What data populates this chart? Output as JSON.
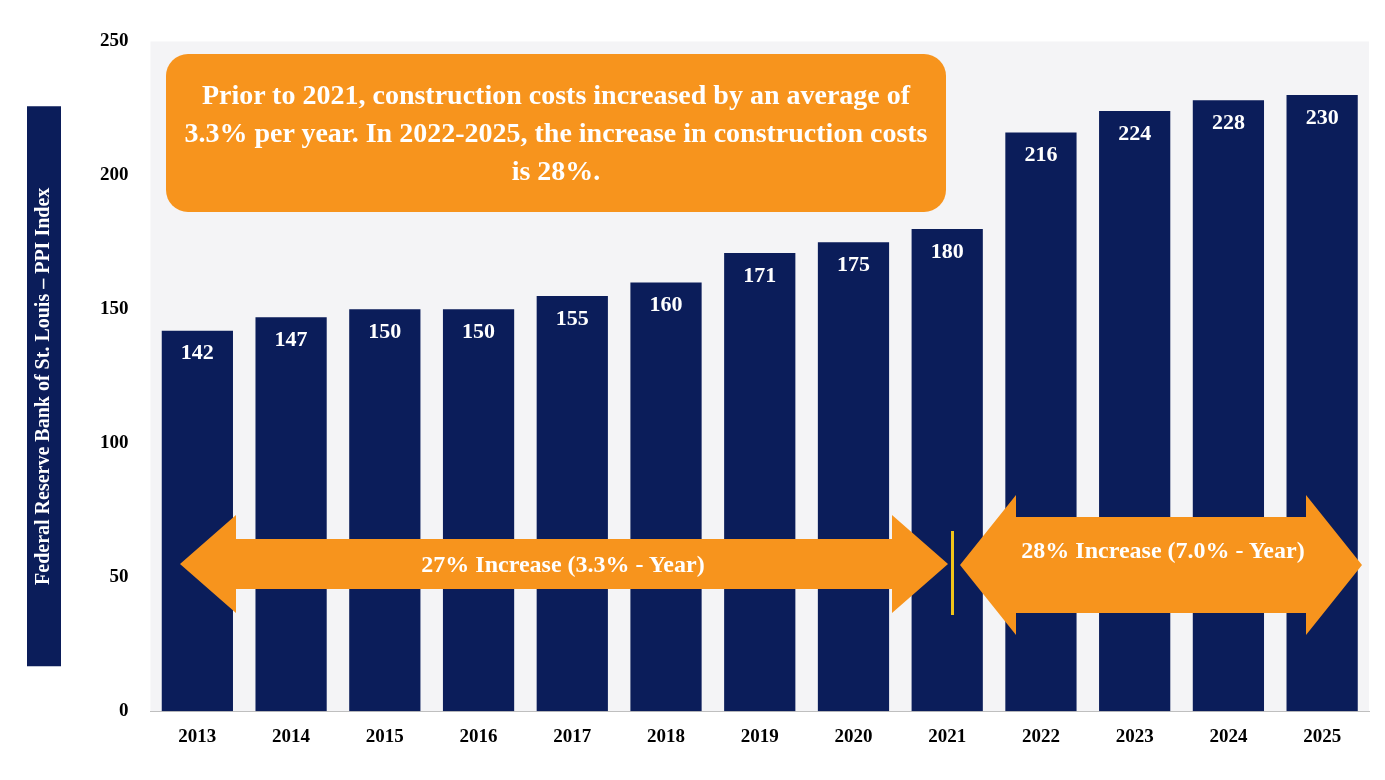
{
  "chart_data": {
    "type": "bar",
    "ylabel": "Federal Reserve Bank of St. Louis – PPI Index",
    "categories": [
      "2013",
      "2014",
      "2015",
      "2016",
      "2017",
      "2018",
      "2019",
      "2020",
      "2021",
      "2022",
      "2023",
      "2024",
      "2025"
    ],
    "values": [
      142,
      147,
      150,
      150,
      155,
      160,
      171,
      175,
      180,
      216,
      224,
      228,
      230
    ],
    "color": "#0b1d5a",
    "ylim": [
      0,
      250
    ],
    "yticks": [
      0,
      50,
      100,
      150,
      200,
      250
    ],
    "grid": false,
    "legend": false,
    "data_labels": true,
    "annotations": [
      "Prior to 2021, construction costs increased by an average of 3.3% per year.  In 2022-2025, the increase in construction costs is 28%.",
      "27% Increase (3.3% - Year)",
      "28% Increase (7.0% - Year)"
    ]
  }
}
